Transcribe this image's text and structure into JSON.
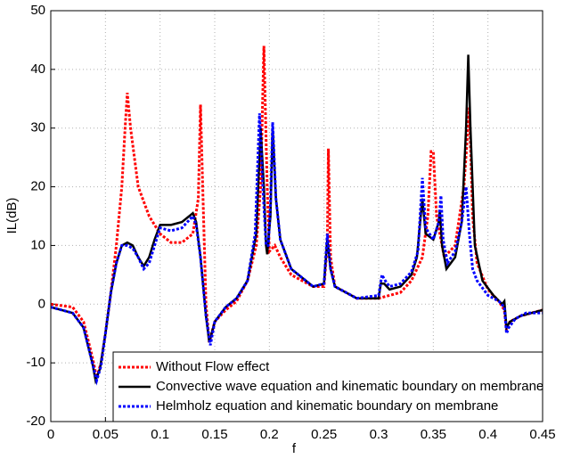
{
  "chart_data": {
    "type": "line",
    "xlabel": "f",
    "ylabel": "IL(dB)",
    "xlim": [
      0,
      0.45
    ],
    "ylim": [
      -20,
      50
    ],
    "xticks": [
      0,
      0.05,
      0.1,
      0.15,
      0.2,
      0.25,
      0.3,
      0.35,
      0.4,
      0.45
    ],
    "yticks": [
      -20,
      -10,
      0,
      10,
      20,
      30,
      40,
      50
    ],
    "grid": true,
    "legend": "lower right",
    "series": [
      {
        "name": "Without Flow effect",
        "color": "#ff0000",
        "dash": "dotted",
        "x": [
          0,
          0.02,
          0.03,
          0.038,
          0.042,
          0.046,
          0.05,
          0.055,
          0.06,
          0.065,
          0.068,
          0.07,
          0.073,
          0.08,
          0.09,
          0.1,
          0.11,
          0.12,
          0.13,
          0.135,
          0.137,
          0.139,
          0.142,
          0.145,
          0.15,
          0.16,
          0.17,
          0.18,
          0.188,
          0.192,
          0.195,
          0.198,
          0.2,
          0.205,
          0.21,
          0.22,
          0.24,
          0.25,
          0.253,
          0.254,
          0.256,
          0.26,
          0.28,
          0.3,
          0.32,
          0.33,
          0.34,
          0.345,
          0.348,
          0.35,
          0.353,
          0.36,
          0.37,
          0.378,
          0.383,
          0.386,
          0.39,
          0.4,
          0.41,
          0.415,
          0.417,
          0.42,
          0.43,
          0.45
        ],
        "values": [
          0,
          -0.5,
          -3,
          -9,
          -12.5,
          -10,
          -5,
          2,
          10,
          20,
          30,
          36,
          30,
          20,
          15,
          12,
          10.5,
          10.5,
          12,
          18,
          34,
          20,
          0,
          -6.5,
          -3,
          -1,
          0.5,
          4,
          10,
          20,
          44,
          20,
          9,
          10,
          8,
          5,
          3,
          3,
          10,
          26.5,
          8,
          3,
          1,
          1,
          2,
          4,
          8,
          15,
          26,
          26,
          15,
          8,
          10,
          20,
          33.5,
          15,
          7,
          2.5,
          0.5,
          -1,
          -4.5,
          -3,
          -2,
          -1
        ]
      },
      {
        "name": "Convective wave equation and kinematic boundary on membrane",
        "color": "#000000",
        "dash": "solid",
        "x": [
          0,
          0.02,
          0.03,
          0.038,
          0.041,
          0.045,
          0.05,
          0.055,
          0.06,
          0.065,
          0.07,
          0.075,
          0.08,
          0.085,
          0.09,
          0.095,
          0.1,
          0.11,
          0.12,
          0.13,
          0.133,
          0.137,
          0.142,
          0.145,
          0.15,
          0.16,
          0.17,
          0.18,
          0.188,
          0.192,
          0.195,
          0.197,
          0.198,
          0.201,
          0.203,
          0.206,
          0.21,
          0.22,
          0.24,
          0.25,
          0.253,
          0.256,
          0.26,
          0.28,
          0.3,
          0.302,
          0.305,
          0.31,
          0.32,
          0.33,
          0.335,
          0.34,
          0.343,
          0.35,
          0.355,
          0.356,
          0.358,
          0.362,
          0.37,
          0.376,
          0.38,
          0.382,
          0.384,
          0.388,
          0.395,
          0.405,
          0.413,
          0.415,
          0.417,
          0.42,
          0.43,
          0.45
        ],
        "values": [
          -0.5,
          -1.5,
          -4,
          -10,
          -13,
          -11,
          -5,
          2,
          7,
          10,
          10.5,
          10,
          8,
          6.5,
          8,
          11,
          13.5,
          13.5,
          14,
          15.5,
          14,
          8,
          -2,
          -6.5,
          -3,
          -0.5,
          1,
          4,
          12,
          30,
          20,
          10,
          8.5,
          15,
          30,
          18,
          11,
          6,
          3,
          3.5,
          11,
          6,
          3,
          1,
          1,
          3.5,
          3.5,
          2.5,
          3,
          5,
          8,
          18,
          12,
          11,
          14,
          16,
          10,
          6,
          8,
          14,
          30,
          42.5,
          30,
          10,
          4,
          1.5,
          0,
          0.5,
          -4,
          -3,
          -2,
          -1
        ]
      },
      {
        "name": "Helmholz equation and kinematic boundary on membrane",
        "color": "#0000ff",
        "dash": "dotted",
        "x": [
          0,
          0.02,
          0.03,
          0.038,
          0.042,
          0.046,
          0.05,
          0.055,
          0.06,
          0.065,
          0.07,
          0.075,
          0.08,
          0.085,
          0.09,
          0.095,
          0.1,
          0.11,
          0.12,
          0.13,
          0.133,
          0.137,
          0.142,
          0.146,
          0.15,
          0.16,
          0.17,
          0.18,
          0.187,
          0.191,
          0.194,
          0.197,
          0.199,
          0.201,
          0.203,
          0.206,
          0.21,
          0.22,
          0.24,
          0.25,
          0.253,
          0.256,
          0.26,
          0.28,
          0.3,
          0.303,
          0.306,
          0.31,
          0.32,
          0.33,
          0.336,
          0.34,
          0.343,
          0.35,
          0.355,
          0.357,
          0.359,
          0.363,
          0.37,
          0.376,
          0.38,
          0.383,
          0.386,
          0.39,
          0.4,
          0.41,
          0.415,
          0.417,
          0.419,
          0.425,
          0.435,
          0.45
        ],
        "values": [
          -0.5,
          -1.5,
          -4,
          -10,
          -13,
          -10.5,
          -5,
          2,
          7,
          10,
          10,
          9.5,
          8,
          6,
          7,
          10,
          13,
          12.5,
          13,
          15,
          13.5,
          8,
          -2,
          -7,
          -3,
          -0.5,
          1,
          4,
          12,
          32.5,
          20,
          10,
          10,
          17,
          31,
          18,
          11,
          6,
          3,
          3.5,
          12,
          6,
          3,
          1,
          1.5,
          5,
          4,
          3,
          3.5,
          5.5,
          9,
          21.5,
          13,
          11,
          14,
          18.5,
          11,
          7,
          9,
          14,
          20,
          12,
          6,
          4,
          1.5,
          0.5,
          -0.5,
          -5,
          -4,
          -2.5,
          -1.5,
          -1.5
        ]
      }
    ]
  }
}
